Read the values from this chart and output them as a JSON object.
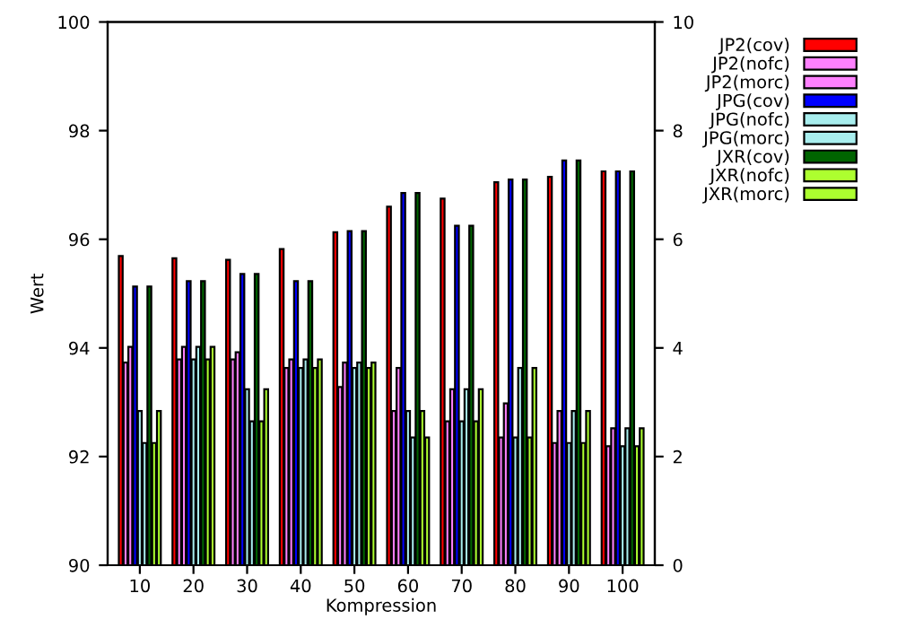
{
  "chart_data": {
    "type": "bar",
    "xlabel": "Kompression",
    "ylabel": "Wert",
    "categories": [
      "10",
      "20",
      "30",
      "40",
      "50",
      "60",
      "70",
      "80",
      "90",
      "100"
    ],
    "ylim": [
      90,
      100
    ],
    "yticks": [
      90,
      92,
      94,
      96,
      98,
      100
    ],
    "y2lim": [
      0,
      10
    ],
    "y2ticks": [
      0,
      2,
      4,
      6,
      8,
      10
    ],
    "grid": false,
    "legend": "top right",
    "series": [
      {
        "name": "JP2(cov)",
        "color": "#ff0000",
        "values": [
          95.69,
          95.65,
          95.62,
          95.82,
          96.13,
          96.6,
          96.75,
          97.05,
          97.15,
          97.25
        ]
      },
      {
        "name": "JP2(nofc)",
        "color": "#ff80ff",
        "values": [
          93.73,
          93.79,
          93.79,
          93.63,
          93.28,
          92.84,
          92.65,
          92.35,
          92.25,
          92.19
        ]
      },
      {
        "name": "JP2(morc)",
        "color": "#ff80ff",
        "values": [
          94.02,
          94.02,
          93.92,
          93.79,
          93.73,
          93.63,
          93.24,
          92.98,
          92.84,
          92.52
        ]
      },
      {
        "name": "JPG(cov)",
        "color": "#0000ff",
        "values": [
          95.13,
          95.23,
          95.36,
          95.23,
          96.15,
          96.85,
          96.25,
          97.1,
          97.45,
          97.25
        ]
      },
      {
        "name": "JPG(nofc)",
        "color": "#a8eeee",
        "values": [
          92.84,
          93.79,
          93.24,
          93.63,
          93.63,
          92.84,
          92.65,
          92.35,
          92.25,
          92.19
        ]
      },
      {
        "name": "JPG(morc)",
        "color": "#a8eeee",
        "values": [
          92.25,
          94.02,
          92.65,
          93.79,
          93.73,
          92.35,
          93.24,
          93.63,
          92.84,
          92.52
        ]
      },
      {
        "name": "JXR(cov)",
        "color": "#006400",
        "values": [
          95.13,
          95.23,
          95.36,
          95.23,
          96.15,
          96.85,
          96.25,
          97.1,
          97.45,
          97.25
        ]
      },
      {
        "name": "JXR(nofc)",
        "color": "#adff2f",
        "values": [
          92.25,
          93.79,
          92.65,
          93.63,
          93.63,
          92.84,
          92.65,
          92.35,
          92.25,
          92.19
        ]
      },
      {
        "name": "JXR(morc)",
        "color": "#adff2f",
        "values": [
          92.84,
          94.02,
          93.24,
          93.79,
          93.73,
          92.35,
          93.24,
          93.63,
          92.84,
          92.52
        ]
      }
    ]
  }
}
